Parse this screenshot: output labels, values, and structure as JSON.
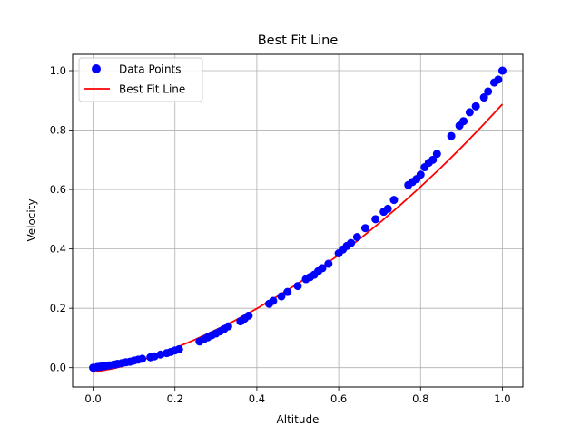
{
  "chart_data": {
    "type": "scatter",
    "title": "Best Fit Line",
    "xlabel": "Altitude",
    "ylabel": "Velocity",
    "xlim": [
      -0.05,
      1.05
    ],
    "ylim": [
      -0.065,
      1.055
    ],
    "x_ticks": [
      "0.0",
      "0.2",
      "0.4",
      "0.6",
      "0.8",
      "1.0"
    ],
    "y_ticks": [
      "0.0",
      "0.2",
      "0.4",
      "0.6",
      "0.8",
      "1.0"
    ],
    "grid": true,
    "legend_position": "top-left",
    "series": [
      {
        "name": "Data Points",
        "kind": "scatter",
        "color": "#0000ff",
        "x": [
          0.0,
          0.01,
          0.015,
          0.02,
          0.025,
          0.03,
          0.04,
          0.05,
          0.055,
          0.06,
          0.07,
          0.08,
          0.09,
          0.1,
          0.11,
          0.12,
          0.14,
          0.15,
          0.165,
          0.18,
          0.19,
          0.2,
          0.21,
          0.26,
          0.27,
          0.28,
          0.29,
          0.3,
          0.31,
          0.32,
          0.33,
          0.36,
          0.37,
          0.38,
          0.43,
          0.44,
          0.46,
          0.475,
          0.5,
          0.52,
          0.53,
          0.54,
          0.55,
          0.56,
          0.575,
          0.6,
          0.61,
          0.62,
          0.63,
          0.645,
          0.665,
          0.69,
          0.71,
          0.72,
          0.735,
          0.77,
          0.78,
          0.79,
          0.8,
          0.81,
          0.82,
          0.83,
          0.84,
          0.875,
          0.895,
          0.905,
          0.92,
          0.935,
          0.955,
          0.965,
          0.98,
          0.99,
          1.0
        ],
        "values": [
          0.0,
          0.002,
          0.003,
          0.004,
          0.005,
          0.006,
          0.008,
          0.01,
          0.011,
          0.013,
          0.015,
          0.018,
          0.02,
          0.024,
          0.027,
          0.03,
          0.035,
          0.038,
          0.044,
          0.049,
          0.053,
          0.058,
          0.062,
          0.088,
          0.095,
          0.102,
          0.109,
          0.115,
          0.122,
          0.13,
          0.139,
          0.156,
          0.165,
          0.175,
          0.215,
          0.225,
          0.24,
          0.255,
          0.275,
          0.298,
          0.305,
          0.313,
          0.325,
          0.335,
          0.35,
          0.385,
          0.398,
          0.41,
          0.42,
          0.44,
          0.47,
          0.5,
          0.525,
          0.535,
          0.565,
          0.615,
          0.625,
          0.635,
          0.65,
          0.675,
          0.69,
          0.7,
          0.72,
          0.78,
          0.815,
          0.83,
          0.86,
          0.88,
          0.91,
          0.93,
          0.96,
          0.97,
          1.0
        ]
      },
      {
        "name": "Best Fit Line",
        "kind": "line",
        "color": "#ff0000",
        "x": [
          0.0,
          0.05,
          0.1,
          0.15,
          0.2,
          0.25,
          0.3,
          0.35,
          0.4,
          0.45,
          0.5,
          0.55,
          0.6,
          0.65,
          0.7,
          0.75,
          0.8,
          0.85,
          0.9,
          0.95,
          1.0
        ],
        "values": [
          -0.015,
          -0.003,
          0.016,
          0.04,
          0.066,
          0.095,
          0.127,
          0.161,
          0.199,
          0.24,
          0.283,
          0.33,
          0.38,
          0.432,
          0.488,
          0.547,
          0.609,
          0.674,
          0.742,
          0.813,
          0.887
        ]
      }
    ]
  }
}
